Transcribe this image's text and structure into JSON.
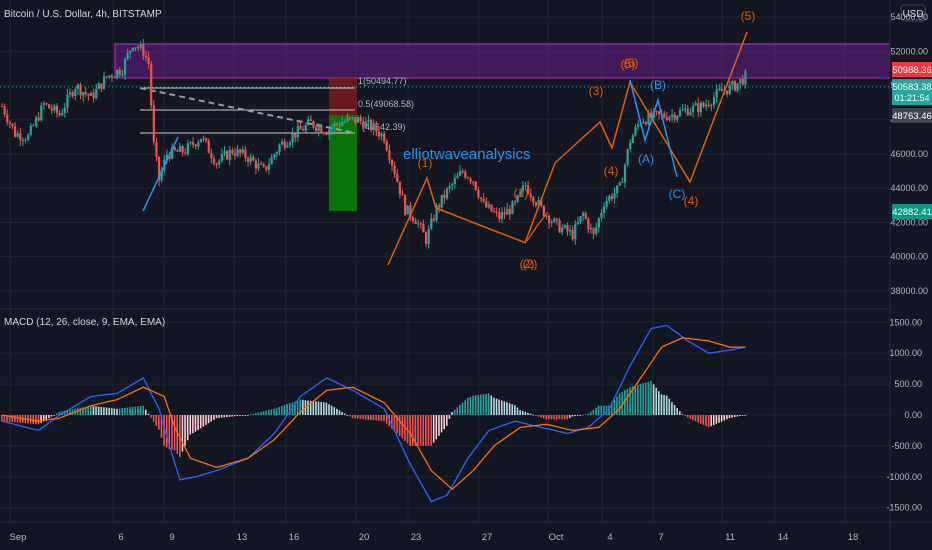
{
  "header": {
    "symbol": "Bitcoin / U.S. Dollar, 4h, BITSTAMP",
    "currency": "USD"
  },
  "colors": {
    "bg": "#131722",
    "grid": "#1f2430",
    "axis_text": "#b2b5be",
    "up": "#26a69a",
    "down": "#ef5350",
    "orange": "#e65c00",
    "blue": "#2196f3",
    "macd_line": "#2962ff",
    "signal_line": "#ff6d00",
    "resistance_zone": "#7b1fa2",
    "short_stop": "#8b1c1c",
    "short_target": "#0a7d0a",
    "fib": "#c8c8c8",
    "watermark": "#2196f3"
  },
  "watermark": "elliotwaveanalysics",
  "price_badges": [
    {
      "text": "50988.36",
      "color": "#f23645"
    },
    {
      "text": "50583.38",
      "color": "#26a69a",
      "sub": "01:21:54"
    },
    {
      "text": "48763.46",
      "color": "#434651"
    },
    {
      "text": "42882.41",
      "color": "#089981"
    }
  ],
  "fib_labels": [
    "1(50494.77)",
    "0.5(49068.58)",
    "(47642.39)"
  ],
  "chart_data": [
    {
      "type": "candlestick",
      "title": "Bitcoin / U.S. Dollar, 4h, BITSTAMP",
      "ylim": [
        37000,
        55000
      ],
      "yticks": [
        38000,
        40000,
        42000,
        44000,
        46000,
        48000,
        50000,
        52000,
        54000
      ],
      "ytick_labels": [
        "38000.00",
        "40000.00",
        "42000.00",
        "44000.00",
        "46000.00",
        "48000.00",
        "50000.00",
        "52000.00",
        "54000.00"
      ],
      "x_dates": [
        "Sep",
        "6",
        "9",
        "13",
        "16",
        "20",
        "23",
        "27",
        "Oct",
        "4",
        "7",
        "11",
        "14",
        "18"
      ],
      "price_path": [
        {
          "t": 0,
          "p": 48800
        },
        {
          "t": 5,
          "p": 47200
        },
        {
          "t": 10,
          "p": 47000
        },
        {
          "t": 16,
          "p": 48900
        },
        {
          "t": 22,
          "p": 48300
        },
        {
          "t": 28,
          "p": 50000
        },
        {
          "t": 34,
          "p": 49300
        },
        {
          "t": 40,
          "p": 50500
        },
        {
          "t": 46,
          "p": 51000
        },
        {
          "t": 50,
          "p": 52500
        },
        {
          "t": 54,
          "p": 52000
        },
        {
          "t": 56,
          "p": 51300
        },
        {
          "t": 58,
          "p": 46500
        },
        {
          "t": 60,
          "p": 44500
        },
        {
          "t": 63,
          "p": 46000
        },
        {
          "t": 70,
          "p": 46200
        },
        {
          "t": 76,
          "p": 47000
        },
        {
          "t": 82,
          "p": 45500
        },
        {
          "t": 88,
          "p": 46200
        },
        {
          "t": 94,
          "p": 45800
        },
        {
          "t": 100,
          "p": 45000
        },
        {
          "t": 106,
          "p": 46500
        },
        {
          "t": 112,
          "p": 47200
        },
        {
          "t": 118,
          "p": 47800
        },
        {
          "t": 124,
          "p": 47400
        },
        {
          "t": 130,
          "p": 47900
        },
        {
          "t": 136,
          "p": 48000
        },
        {
          "t": 142,
          "p": 47500
        },
        {
          "t": 146,
          "p": 47000
        },
        {
          "t": 150,
          "p": 45000
        },
        {
          "t": 154,
          "p": 42800
        },
        {
          "t": 158,
          "p": 42200
        },
        {
          "t": 162,
          "p": 41000
        },
        {
          "t": 166,
          "p": 42800
        },
        {
          "t": 170,
          "p": 43800
        },
        {
          "t": 176,
          "p": 45000
        },
        {
          "t": 180,
          "p": 44500
        },
        {
          "t": 184,
          "p": 43000
        },
        {
          "t": 190,
          "p": 42300
        },
        {
          "t": 196,
          "p": 43000
        },
        {
          "t": 200,
          "p": 44200
        },
        {
          "t": 206,
          "p": 42800
        },
        {
          "t": 212,
          "p": 41800
        },
        {
          "t": 218,
          "p": 41300
        },
        {
          "t": 222,
          "p": 42500
        },
        {
          "t": 226,
          "p": 41200
        },
        {
          "t": 230,
          "p": 43200
        },
        {
          "t": 236,
          "p": 44000
        },
        {
          "t": 240,
          "p": 46800
        },
        {
          "t": 244,
          "p": 48000
        },
        {
          "t": 250,
          "p": 48200
        },
        {
          "t": 256,
          "p": 48300
        },
        {
          "t": 262,
          "p": 48600
        },
        {
          "t": 268,
          "p": 48800
        },
        {
          "t": 274,
          "p": 49600
        },
        {
          "t": 280,
          "p": 50000
        },
        {
          "t": 284,
          "p": 50500
        }
      ],
      "wave_labels_orange": [
        "(5)",
        "(5)",
        "(5)",
        "(3)",
        "(4)",
        "(1)",
        "(2)",
        "(2)",
        "(1)",
        "(4)"
      ],
      "wave_labels_blue": [
        "(B)",
        "(A)",
        "(C)"
      ]
    },
    {
      "type": "line+bar",
      "title": "MACD (12, 26, close, 9, EMA, EMA)",
      "ylim": [
        -1700,
        1700
      ],
      "yticks": [
        -1500,
        -1000,
        -500,
        0,
        500,
        1000,
        1500
      ],
      "ytick_labels": [
        "-1500.00",
        "-1000.00",
        "-500.00",
        "0.00",
        "500.00",
        "1000.00",
        "1500.00"
      ],
      "series": [
        {
          "name": "MACD",
          "points": [
            {
              "t": 0,
              "v": -100
            },
            {
              "t": 14,
              "v": -250
            },
            {
              "t": 22,
              "v": 0
            },
            {
              "t": 34,
              "v": 300
            },
            {
              "t": 44,
              "v": 350
            },
            {
              "t": 54,
              "v": 600
            },
            {
              "t": 60,
              "v": 100
            },
            {
              "t": 64,
              "v": -500
            },
            {
              "t": 68,
              "v": -1050
            },
            {
              "t": 74,
              "v": -1000
            },
            {
              "t": 82,
              "v": -900
            },
            {
              "t": 94,
              "v": -700
            },
            {
              "t": 104,
              "v": -300
            },
            {
              "t": 114,
              "v": 300
            },
            {
              "t": 124,
              "v": 600
            },
            {
              "t": 134,
              "v": 400
            },
            {
              "t": 146,
              "v": 100
            },
            {
              "t": 156,
              "v": -800
            },
            {
              "t": 164,
              "v": -1400
            },
            {
              "t": 170,
              "v": -1300
            },
            {
              "t": 178,
              "v": -700
            },
            {
              "t": 186,
              "v": -250
            },
            {
              "t": 196,
              "v": -100
            },
            {
              "t": 206,
              "v": -200
            },
            {
              "t": 216,
              "v": -300
            },
            {
              "t": 224,
              "v": -200
            },
            {
              "t": 232,
              "v": 100
            },
            {
              "t": 240,
              "v": 800
            },
            {
              "t": 248,
              "v": 1400
            },
            {
              "t": 254,
              "v": 1450
            },
            {
              "t": 262,
              "v": 1200
            },
            {
              "t": 270,
              "v": 1000
            },
            {
              "t": 278,
              "v": 1050
            },
            {
              "t": 284,
              "v": 1100
            }
          ]
        },
        {
          "name": "Signal",
          "points": [
            {
              "t": 0,
              "v": 0
            },
            {
              "t": 14,
              "v": -100
            },
            {
              "t": 22,
              "v": -50
            },
            {
              "t": 34,
              "v": 150
            },
            {
              "t": 44,
              "v": 250
            },
            {
              "t": 54,
              "v": 450
            },
            {
              "t": 62,
              "v": 300
            },
            {
              "t": 66,
              "v": -200
            },
            {
              "t": 72,
              "v": -700
            },
            {
              "t": 82,
              "v": -850
            },
            {
              "t": 94,
              "v": -700
            },
            {
              "t": 104,
              "v": -400
            },
            {
              "t": 114,
              "v": 50
            },
            {
              "t": 124,
              "v": 400
            },
            {
              "t": 134,
              "v": 450
            },
            {
              "t": 146,
              "v": 200
            },
            {
              "t": 156,
              "v": -300
            },
            {
              "t": 164,
              "v": -900
            },
            {
              "t": 172,
              "v": -1200
            },
            {
              "t": 180,
              "v": -900
            },
            {
              "t": 188,
              "v": -500
            },
            {
              "t": 198,
              "v": -200
            },
            {
              "t": 208,
              "v": -150
            },
            {
              "t": 218,
              "v": -250
            },
            {
              "t": 228,
              "v": -200
            },
            {
              "t": 236,
              "v": 100
            },
            {
              "t": 244,
              "v": 600
            },
            {
              "t": 252,
              "v": 1100
            },
            {
              "t": 260,
              "v": 1250
            },
            {
              "t": 270,
              "v": 1200
            },
            {
              "t": 278,
              "v": 1100
            },
            {
              "t": 284,
              "v": 1100
            }
          ]
        }
      ]
    }
  ]
}
